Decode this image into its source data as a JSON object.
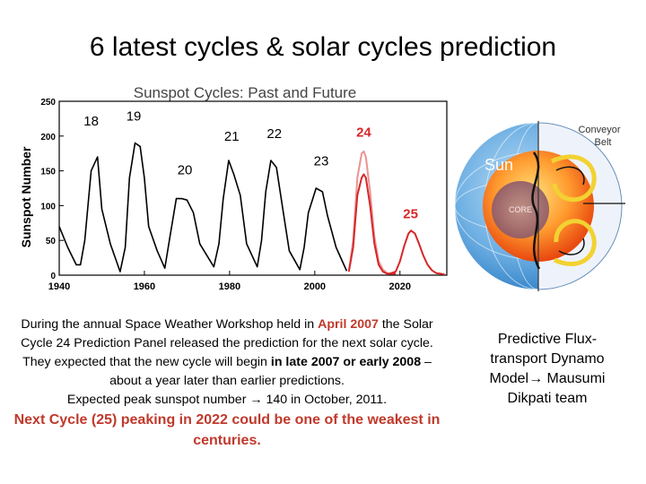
{
  "slide": {
    "title": "6 latest cycles & solar cycles prediction"
  },
  "chart_data": {
    "type": "line",
    "title": "Sunspot Cycles: Past and Future",
    "xlabel": "",
    "ylabel": "Sunspot Number",
    "xlim": [
      1940,
      2031
    ],
    "ylim": [
      0,
      250
    ],
    "x_ticks": [
      "1940",
      "1960",
      "1980",
      "2000",
      "2020"
    ],
    "y_ticks": [
      "0",
      "50",
      "100",
      "150",
      "200",
      "250"
    ],
    "grid": false,
    "cycle_labels": [
      {
        "text": "18",
        "x": 1947.5,
        "y": 215,
        "color": "#000000"
      },
      {
        "text": "19",
        "x": 1957.5,
        "y": 222,
        "color": "#000000"
      },
      {
        "text": "20",
        "x": 1969.5,
        "y": 145,
        "color": "#000000"
      },
      {
        "text": "21",
        "x": 1980.5,
        "y": 193,
        "color": "#000000"
      },
      {
        "text": "22",
        "x": 1990.5,
        "y": 197,
        "color": "#000000"
      },
      {
        "text": "23",
        "x": 2001.5,
        "y": 158,
        "color": "#000000"
      },
      {
        "text": "24",
        "x": 2011.5,
        "y": 199,
        "color": "#d62728"
      },
      {
        "text": "25",
        "x": 2022.5,
        "y": 82,
        "color": "#d62728"
      }
    ],
    "series": [
      {
        "color": "#000000",
        "x": [
          1940,
          1942,
          1944,
          1945,
          1946,
          1947.5,
          1949,
          1950,
          1952,
          1954.3,
          1955.5,
          1956.5,
          1957.8,
          1959,
          1960,
          1961,
          1963,
          1964.8,
          1966,
          1967.5,
          1968.8,
          1970,
          1971.5,
          1973,
          1976.3,
          1977.5,
          1978.5,
          1979.8,
          1981,
          1982.5,
          1984,
          1986.5,
          1987.5,
          1988.5,
          1989.7,
          1991,
          1992.5,
          1994,
          1996.5,
          1997.5,
          1998.5,
          2000.3,
          2001.8,
          2003,
          2005,
          2007.5
        ],
        "values": [
          70,
          40,
          15,
          15,
          50,
          150,
          170,
          95,
          45,
          5,
          40,
          140,
          190,
          185,
          140,
          70,
          35,
          10,
          55,
          110,
          110,
          108,
          90,
          45,
          12,
          45,
          110,
          165,
          145,
          115,
          45,
          12,
          50,
          120,
          165,
          155,
          95,
          35,
          8,
          40,
          90,
          125,
          120,
          85,
          40,
          6
        ]
      },
      {
        "color": "#d62728",
        "x": [
          2008,
          2009,
          2010,
          2011,
          2011.5,
          2012,
          2013,
          2014,
          2015,
          2016,
          2017,
          2018,
          2019
        ],
        "values": [
          5,
          50,
          140,
          175,
          178,
          170,
          120,
          55,
          20,
          8,
          3,
          2,
          2
        ]
      },
      {
        "color": "#d62728",
        "x": [
          2008,
          2009,
          2010,
          2011,
          2011.5,
          2012,
          2013,
          2014,
          2015,
          2016,
          2017,
          2018,
          2019
        ],
        "values": [
          5,
          40,
          115,
          140,
          145,
          140,
          100,
          45,
          15,
          5,
          2,
          2,
          2
        ]
      },
      {
        "color": "#d62728",
        "x": [
          2017.5,
          2019,
          2020,
          2021,
          2022,
          2022.6,
          2023.5,
          2024.5,
          2025.5,
          2026.5,
          2027.5,
          2028.5,
          2029.5,
          2030.5
        ],
        "values": [
          2,
          5,
          20,
          42,
          60,
          64,
          60,
          45,
          28,
          15,
          7,
          3,
          2,
          1
        ]
      }
    ]
  },
  "sun_diagram": {
    "sun_label": "Sun",
    "core_label": "CORE",
    "belt_label_line1": "Conveyor",
    "belt_label_line2": "Belt"
  },
  "caption": {
    "p1_a": "During the annual Space Weather Workshop held in ",
    "p1_date": "April 2007",
    "p1_b": " the Solar Cycle 24 Prediction Panel released the prediction for the next solar cycle. They expected that the new cycle will begin ",
    "p1_when": "in late 2007 or early 2008",
    "p1_c": " – about a year later than earlier predictions.",
    "p2_a": "Expected peak sunspot number ",
    "p2_arrow": "→",
    "p2_b": " 140 in October, 2011.",
    "p3": "Next Cycle (25) peaking in 2022 could be one of the weakest in centuries."
  },
  "side_caption": {
    "line1": "Predictive Flux-transport Dynamo Model",
    "arrow": "→",
    "line2": " Mausumi Dikpati team"
  }
}
